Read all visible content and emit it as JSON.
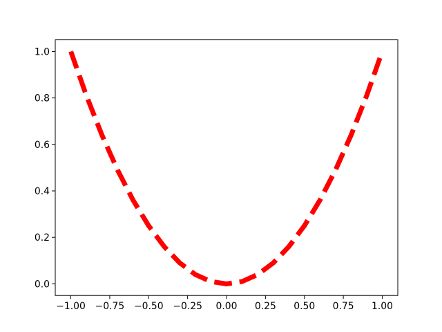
{
  "chart_data": {
    "type": "line",
    "x": [
      -1,
      -0.9,
      -0.8,
      -0.7,
      -0.6,
      -0.5,
      -0.4,
      -0.3,
      -0.2,
      -0.1,
      0,
      0.1,
      0.2,
      0.3,
      0.4,
      0.5,
      0.6,
      0.7,
      0.8,
      0.9,
      1
    ],
    "series": [
      {
        "color": "#ff0000",
        "linestyle": "dashed",
        "values": [
          1,
          0.81,
          0.64,
          0.49,
          0.36,
          0.25,
          0.16,
          0.09,
          0.04,
          0.01,
          0,
          0.01,
          0.04,
          0.09,
          0.16,
          0.25,
          0.36,
          0.49,
          0.64,
          0.81,
          1
        ]
      }
    ],
    "xlim": [
      -1.1,
      1.1
    ],
    "xticks": [
      {
        "value": -1,
        "label": "−1.00"
      },
      {
        "value": -0.75,
        "label": "−0.75"
      },
      {
        "value": -0.5,
        "label": "−0.50"
      },
      {
        "value": -0.25,
        "label": "−0.25"
      },
      {
        "value": 0,
        "label": "0.00"
      },
      {
        "value": 0.25,
        "label": "0.25"
      },
      {
        "value": 0.5,
        "label": "0.50"
      },
      {
        "value": 0.75,
        "label": "0.75"
      },
      {
        "value": 1,
        "label": "1.00"
      }
    ],
    "ylim": [
      -0.05,
      1.05
    ],
    "yticks": [
      {
        "value": 0,
        "label": "0.0"
      },
      0.2,
      0.4,
      0.6,
      0.8,
      {
        "value": 1,
        "label": "1.0"
      }
    ],
    "grid": false
  }
}
